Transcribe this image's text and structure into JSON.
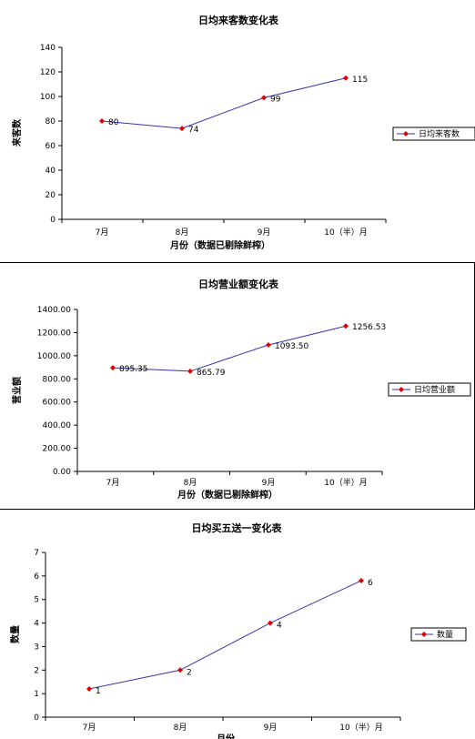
{
  "chart_data": [
    {
      "type": "line",
      "title": "日均来客数变化表",
      "xlabel": "月份（数据已剔除鲜榨）",
      "ylabel": "来客数",
      "categories": [
        "7月",
        "8月",
        "9月",
        "10（半）月"
      ],
      "series": [
        {
          "name": "日均来客数",
          "values": [
            80,
            74,
            99,
            115
          ]
        }
      ],
      "data_labels": [
        "80",
        "74",
        "99",
        "115"
      ],
      "ylim": [
        0,
        140
      ],
      "yticks": [
        "0",
        "20",
        "40",
        "60",
        "80",
        "100",
        "120",
        "140"
      ],
      "legend": "right",
      "grid": false
    },
    {
      "type": "line",
      "title": "日均营业额变化表",
      "xlabel": "月份（数据已剔除鲜榨）",
      "ylabel": "营业额",
      "categories": [
        "7月",
        "8月",
        "9月",
        "10（半）月"
      ],
      "series": [
        {
          "name": "日均营业额",
          "values": [
            895.35,
            865.79,
            1093.5,
            1256.53
          ]
        }
      ],
      "data_labels": [
        "895.35",
        "865.79",
        "1093.50",
        "1256.53"
      ],
      "ylim": [
        0,
        1400
      ],
      "yticks": [
        "0.00",
        "200.00",
        "400.00",
        "600.00",
        "800.00",
        "1000.00",
        "1200.00",
        "1400.00"
      ],
      "legend": "right",
      "grid": false
    },
    {
      "type": "line",
      "title": "日均买五送一变化表",
      "xlabel": "月份",
      "ylabel": "数量",
      "categories": [
        "7月",
        "8月",
        "9月",
        "10（半）月"
      ],
      "series": [
        {
          "name": "数量",
          "values": [
            1.2,
            2,
            4,
            5.8
          ]
        }
      ],
      "data_labels": [
        "1",
        "2",
        "4",
        "6"
      ],
      "ylim": [
        0,
        7
      ],
      "yticks": [
        "0",
        "1",
        "2",
        "3",
        "4",
        "5",
        "6",
        "7"
      ],
      "legend": "right",
      "grid": false
    }
  ],
  "colors": {
    "line": "#3333aa",
    "marker": "#dd0000",
    "axis": "#000000"
  }
}
